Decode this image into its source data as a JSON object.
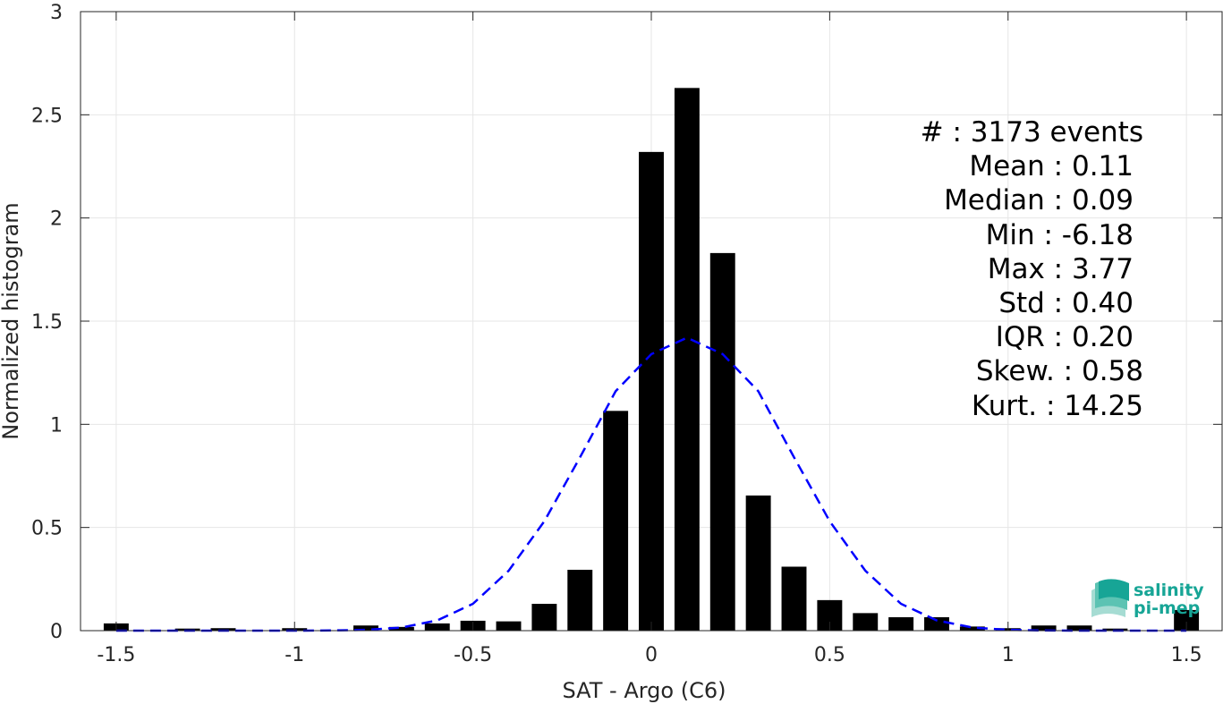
{
  "chart_data": {
    "type": "bar",
    "xlabel": "SAT - Argo (C6)",
    "ylabel": "Normalized histogram",
    "xlim": [
      -1.6,
      1.6
    ],
    "ylim": [
      0,
      3
    ],
    "grid": true,
    "xticks": [
      -1.5,
      -1,
      -0.5,
      0,
      0.5,
      1,
      1.5
    ],
    "xtick_labels": [
      "-1.5",
      "-1",
      "-0.5",
      "0",
      "0.5",
      "1",
      "1.5"
    ],
    "yticks": [
      0,
      0.5,
      1,
      1.5,
      2,
      2.5,
      3
    ],
    "ytick_labels": [
      "0",
      "0.5",
      "1",
      "1.5",
      "2",
      "2.5",
      "3"
    ],
    "bar_width": 0.07,
    "bars": {
      "x": [
        -1.5,
        -1.4,
        -1.3,
        -1.2,
        -1.1,
        -1.0,
        -0.9,
        -0.8,
        -0.7,
        -0.6,
        -0.5,
        -0.4,
        -0.3,
        -0.2,
        -0.1,
        0.0,
        0.1,
        0.2,
        0.3,
        0.4,
        0.5,
        0.6,
        0.7,
        0.8,
        0.9,
        1.0,
        1.1,
        1.2,
        1.3,
        1.4,
        1.5
      ],
      "values": [
        0.035,
        0.0,
        0.01,
        0.012,
        0.0,
        0.012,
        0.0,
        0.025,
        0.018,
        0.035,
        0.048,
        0.045,
        0.13,
        0.295,
        1.065,
        2.32,
        2.63,
        1.83,
        0.655,
        0.31,
        0.148,
        0.085,
        0.065,
        0.065,
        0.02,
        0.012,
        0.025,
        0.025,
        0.01,
        0.0,
        0.1
      ],
      "color": "#000000"
    },
    "fit_curve": {
      "style": "dashed",
      "color": "#0000ff",
      "x": [
        -1.5,
        -1.4,
        -1.3,
        -1.2,
        -1.1,
        -1.0,
        -0.9,
        -0.8,
        -0.7,
        -0.6,
        -0.5,
        -0.4,
        -0.3,
        -0.2,
        -0.1,
        0.0,
        0.1,
        0.2,
        0.3,
        0.4,
        0.5,
        0.6,
        0.7,
        0.8,
        0.9,
        1.0,
        1.1,
        1.2,
        1.3,
        1.4,
        1.5
      ],
      "y": [
        0.0,
        0.0,
        0.0,
        0.0,
        0.0,
        0.0,
        0.001,
        0.004,
        0.015,
        0.05,
        0.13,
        0.29,
        0.53,
        0.84,
        1.16,
        1.34,
        1.42,
        1.34,
        1.16,
        0.84,
        0.53,
        0.29,
        0.13,
        0.05,
        0.015,
        0.004,
        0.001,
        0.0,
        0.0,
        0.0,
        0.0
      ]
    },
    "stats": [
      {
        "label": "#  : 3173 events"
      },
      {
        "label": "Mean : 0.11"
      },
      {
        "label": "Median : 0.09"
      },
      {
        "label": "Min : -6.18"
      },
      {
        "label": "Max : 3.77"
      },
      {
        "label": "Std : 0.40"
      },
      {
        "label": "IQR : 0.20"
      },
      {
        "label": "Skew. : 0.58"
      },
      {
        "label": "Kurt. : 14.25"
      }
    ]
  },
  "logo": {
    "line1": "salinity",
    "line2": "pi-mep",
    "color": "#17a596"
  }
}
